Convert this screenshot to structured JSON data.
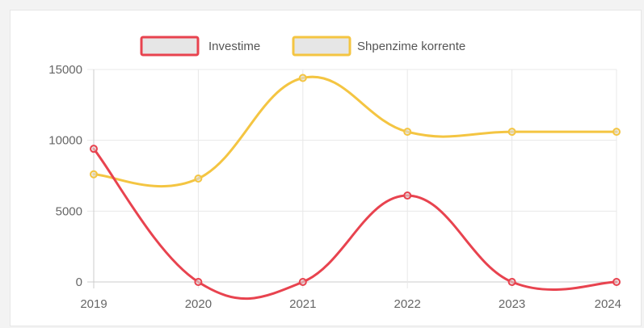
{
  "chart_data": {
    "type": "line",
    "x": [
      "2019",
      "2020",
      "2021",
      "2022",
      "2023",
      "2024"
    ],
    "series": [
      {
        "name": "Investime",
        "values": [
          9400,
          0,
          0,
          6100,
          0,
          0
        ],
        "color": "#e8434f"
      },
      {
        "name": "Shpenzime korrente",
        "values": [
          7600,
          7300,
          14400,
          10600,
          10600,
          10600
        ],
        "color": "#f4c542"
      }
    ],
    "ylim": [
      0,
      15000
    ],
    "yticks": [
      "0",
      "5000",
      "10000",
      "15000"
    ],
    "grid": true,
    "legend": "top-center",
    "smooth": true
  }
}
